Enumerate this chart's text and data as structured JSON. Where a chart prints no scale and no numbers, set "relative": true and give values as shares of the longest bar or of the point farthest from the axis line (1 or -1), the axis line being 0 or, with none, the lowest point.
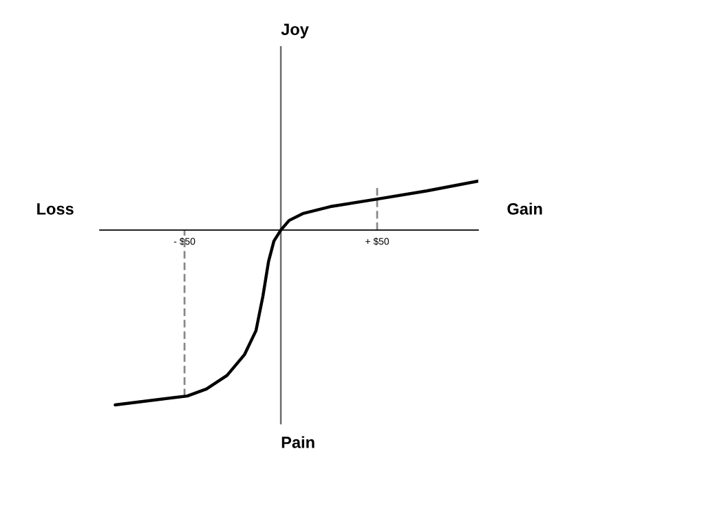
{
  "chart_data": {
    "type": "line",
    "relative": true,
    "annotations": [
      "Joy",
      "Pain",
      "Loss",
      "Gain"
    ],
    "xlim": [
      -94,
      102.5
    ],
    "xticks": [
      {
        "value": -50,
        "label": "- $50"
      },
      {
        "value": 50,
        "label": "+ $50"
      }
    ],
    "grid": false,
    "legend": false,
    "ref_lines": [
      {
        "axis": "x",
        "value": -50,
        "color": "#888888",
        "line_style": "dashed"
      },
      {
        "axis": "x",
        "value": 50,
        "color": "#888888",
        "line_style": "dashed"
      }
    ],
    "series": [
      {
        "color": "#000000",
        "x": [
          -86,
          -48.6,
          -38.6,
          -27.9,
          -18.9,
          -12.9,
          -9.3,
          -6.4,
          -3.6,
          0,
          4.3,
          11.4,
          25.7,
          50,
          75.7,
          102.5
        ],
        "values": [
          -1.0,
          -0.949,
          -0.909,
          -0.831,
          -0.713,
          -0.575,
          -0.378,
          -0.181,
          -0.063,
          0,
          0.055,
          0.094,
          0.134,
          0.177,
          0.224,
          0.28
        ]
      }
    ]
  }
}
